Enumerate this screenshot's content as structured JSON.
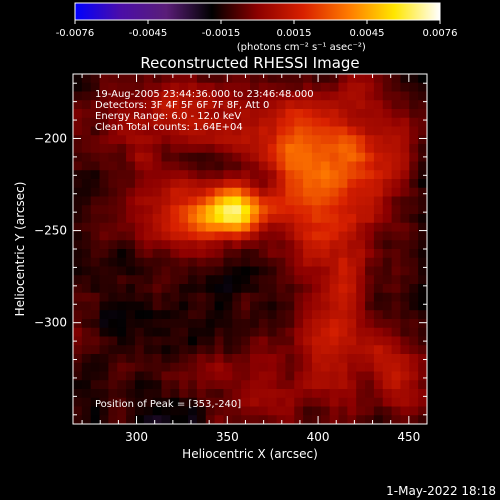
{
  "chart_data": {
    "type": "heatmap",
    "title": "Reconstructed RHESSI Image",
    "xlabel": "Heliocentric X (arcsec)",
    "ylabel": "Heliocentric Y (arcsec)",
    "xlim": [
      265,
      460
    ],
    "ylim": [
      -355,
      -165
    ],
    "x_ticks": [
      300,
      350,
      400,
      450
    ],
    "y_ticks": [
      -200,
      -250,
      -300
    ],
    "colorbar": {
      "range": [
        -0.0076,
        0.0076
      ],
      "tick_labels": [
        "-0.0076",
        "-0.0045",
        "-0.0015",
        "0.0015",
        "0.0045",
        "0.0076"
      ],
      "unit_label": "(photons cm⁻² s⁻¹ asec⁻²)",
      "colors": [
        "#0000ff",
        "#4b0ea8",
        "#5a1e78",
        "#000000",
        "#8c0000",
        "#d82000",
        "#ff7a00",
        "#ffe600",
        "#ffffff"
      ]
    },
    "info_lines": [
      "19-Aug-2005 23:44:36.000 to 23:46:48.000",
      "Detectors: 3F 4F 5F 6F 7F 8F, Att 0",
      "Energy Range: 6.0 - 12.0 keV",
      "Clean    Total counts: 1.64E+04"
    ],
    "peak_label": "Position of Peak = [353,-240]",
    "peak": {
      "x": 353,
      "y": -240,
      "value": 0.0076
    },
    "sources": [
      {
        "x": 353,
        "y": -240,
        "amp": 0.0076,
        "sx": 14,
        "sy": 9
      },
      {
        "x": 320,
        "y": -243,
        "amp": 0.0032,
        "sx": 18,
        "sy": 14
      },
      {
        "x": 402,
        "y": -228,
        "amp": 0.0035,
        "sx": 20,
        "sy": 24
      },
      {
        "x": 385,
        "y": -197,
        "amp": 0.0028,
        "sx": 22,
        "sy": 18
      },
      {
        "x": 330,
        "y": -182,
        "amp": 0.0022,
        "sx": 20,
        "sy": 12
      },
      {
        "x": 430,
        "y": -205,
        "amp": 0.0022,
        "sx": 16,
        "sy": 24
      },
      {
        "x": 410,
        "y": -300,
        "amp": 0.0028,
        "sx": 14,
        "sy": 30
      },
      {
        "x": 445,
        "y": -330,
        "amp": 0.0022,
        "sx": 12,
        "sy": 16
      },
      {
        "x": 365,
        "y": -330,
        "amp": 0.0016,
        "sx": 24,
        "sy": 14
      },
      {
        "x": 300,
        "y": -200,
        "amp": 0.0016,
        "sx": 22,
        "sy": 16
      }
    ],
    "background_level": -0.0014
  },
  "footer": {
    "date": "1-May-2022 18:18"
  }
}
